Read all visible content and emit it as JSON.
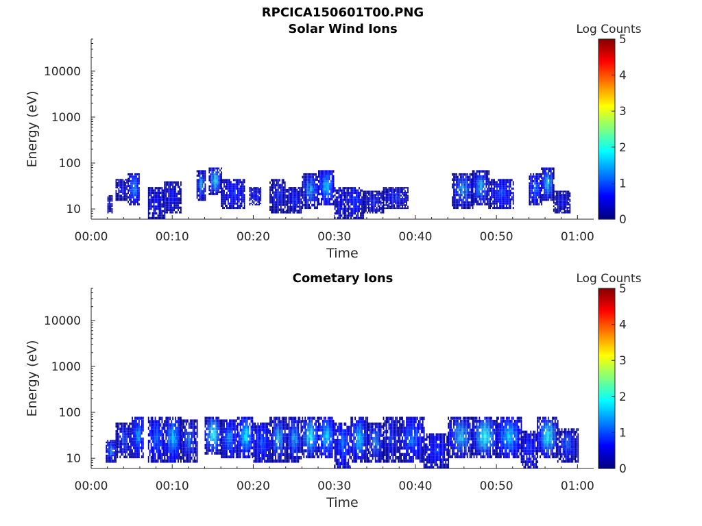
{
  "figure_title": "RPCICA150601T00.PNG",
  "chart_data": [
    {
      "type": "heatmap",
      "title": "Solar Wind Ions",
      "xlabel": "Time",
      "ylabel": "Energy (eV)",
      "x_ticks": [
        "00:00",
        "00:10",
        "00:20",
        "00:30",
        "00:40",
        "00:50",
        "01:00"
      ],
      "xlim_minutes": [
        0,
        62
      ],
      "y_ticks": [
        "10",
        "100",
        "1000",
        "10000"
      ],
      "ylim": [
        6,
        50000
      ],
      "y_scale": "log",
      "colorbar": {
        "label": "Log Counts",
        "ticks": [
          "0",
          "1",
          "2",
          "3",
          "4",
          "5"
        ],
        "range": [
          0,
          5
        ],
        "colormap": "jet"
      },
      "blobs": [
        {
          "t": [
            2,
            2.5
          ],
          "e": [
            8,
            20
          ],
          "c": 0.6
        },
        {
          "t": [
            3,
            4.5
          ],
          "e": [
            15,
            45
          ],
          "c": 0.7
        },
        {
          "t": [
            4.5,
            6
          ],
          "e": [
            12,
            60
          ],
          "c": 1.4
        },
        {
          "t": [
            7,
            9
          ],
          "e": [
            6,
            30
          ],
          "c": 0.5
        },
        {
          "t": [
            9,
            11
          ],
          "e": [
            8,
            40
          ],
          "c": 0.6
        },
        {
          "t": [
            13,
            14
          ],
          "e": [
            15,
            70
          ],
          "c": 1.5
        },
        {
          "t": [
            14.5,
            16
          ],
          "e": [
            20,
            80
          ],
          "c": 1.8
        },
        {
          "t": [
            16,
            19
          ],
          "e": [
            10,
            45
          ],
          "c": 0.8
        },
        {
          "t": [
            19.5,
            21
          ],
          "e": [
            12,
            30
          ],
          "c": 0.6
        },
        {
          "t": [
            22,
            24
          ],
          "e": [
            8,
            45
          ],
          "c": 0.8
        },
        {
          "t": [
            24,
            26
          ],
          "e": [
            8,
            30
          ],
          "c": 0.9
        },
        {
          "t": [
            26,
            28
          ],
          "e": [
            10,
            60
          ],
          "c": 1.4
        },
        {
          "t": [
            28,
            30
          ],
          "e": [
            12,
            70
          ],
          "c": 1.6
        },
        {
          "t": [
            30,
            31.5
          ],
          "e": [
            6,
            30
          ],
          "c": 0.5
        },
        {
          "t": [
            31.5,
            33.5
          ],
          "e": [
            6,
            30
          ],
          "c": 0.9
        },
        {
          "t": [
            33.5,
            36
          ],
          "e": [
            8,
            25
          ],
          "c": 0.8
        },
        {
          "t": [
            36,
            39
          ],
          "e": [
            10,
            30
          ],
          "c": 0.9
        },
        {
          "t": [
            44.5,
            47
          ],
          "e": [
            10,
            60
          ],
          "c": 1.4
        },
        {
          "t": [
            47,
            49
          ],
          "e": [
            12,
            70
          ],
          "c": 1.5
        },
        {
          "t": [
            49,
            52
          ],
          "e": [
            10,
            45
          ],
          "c": 1.0
        },
        {
          "t": [
            54,
            55.5
          ],
          "e": [
            12,
            60
          ],
          "c": 1.2
        },
        {
          "t": [
            55.5,
            57
          ],
          "e": [
            15,
            80
          ],
          "c": 1.7
        },
        {
          "t": [
            57,
            59
          ],
          "e": [
            8,
            25
          ],
          "c": 0.7
        }
      ]
    },
    {
      "type": "heatmap",
      "title": "Cometary Ions",
      "xlabel": "Time",
      "ylabel": "Energy (eV)",
      "x_ticks": [
        "00:00",
        "00:10",
        "00:20",
        "00:30",
        "00:40",
        "00:50",
        "01:00"
      ],
      "xlim_minutes": [
        0,
        62
      ],
      "y_ticks": [
        "10",
        "100",
        "1000",
        "10000"
      ],
      "ylim": [
        6,
        50000
      ],
      "y_scale": "log",
      "colorbar": {
        "label": "Log Counts",
        "ticks": [
          "0",
          "1",
          "2",
          "3",
          "4",
          "5"
        ],
        "range": [
          0,
          5
        ],
        "colormap": "jet"
      },
      "blobs": [
        {
          "t": [
            1.8,
            3
          ],
          "e": [
            8,
            25
          ],
          "c": 1.3
        },
        {
          "t": [
            3,
            5
          ],
          "e": [
            10,
            60
          ],
          "c": 1.0
        },
        {
          "t": [
            5,
            6.5
          ],
          "e": [
            10,
            80
          ],
          "c": 1.4
        },
        {
          "t": [
            7,
            9
          ],
          "e": [
            8,
            80
          ],
          "c": 1.2
        },
        {
          "t": [
            9,
            11
          ],
          "e": [
            8,
            80
          ],
          "c": 1.6
        },
        {
          "t": [
            11,
            13
          ],
          "e": [
            8,
            70
          ],
          "c": 1.2
        },
        {
          "t": [
            14,
            16
          ],
          "e": [
            12,
            80
          ],
          "c": 2.0
        },
        {
          "t": [
            16,
            18
          ],
          "e": [
            10,
            70
          ],
          "c": 1.3
        },
        {
          "t": [
            18,
            20
          ],
          "e": [
            10,
            80
          ],
          "c": 1.8
        },
        {
          "t": [
            20,
            22
          ],
          "e": [
            8,
            60
          ],
          "c": 1.1
        },
        {
          "t": [
            22,
            24
          ],
          "e": [
            8,
            80
          ],
          "c": 1.5
        },
        {
          "t": [
            24,
            26
          ],
          "e": [
            8,
            80
          ],
          "c": 1.4
        },
        {
          "t": [
            26,
            28
          ],
          "e": [
            10,
            80
          ],
          "c": 1.9
        },
        {
          "t": [
            28,
            30
          ],
          "e": [
            10,
            80
          ],
          "c": 1.7
        },
        {
          "t": [
            30,
            32
          ],
          "e": [
            6,
            60
          ],
          "c": 1.2
        },
        {
          "t": [
            32,
            34
          ],
          "e": [
            8,
            80
          ],
          "c": 1.6
        },
        {
          "t": [
            34,
            36
          ],
          "e": [
            8,
            60
          ],
          "c": 1.3
        },
        {
          "t": [
            36,
            38
          ],
          "e": [
            8,
            80
          ],
          "c": 0.9
        },
        {
          "t": [
            38,
            41
          ],
          "e": [
            8,
            80
          ],
          "c": 1.2
        },
        {
          "t": [
            41,
            44
          ],
          "e": [
            6,
            35
          ],
          "c": 0.8
        },
        {
          "t": [
            44,
            47
          ],
          "e": [
            10,
            80
          ],
          "c": 1.6
        },
        {
          "t": [
            47,
            50
          ],
          "e": [
            10,
            80
          ],
          "c": 2.0
        },
        {
          "t": [
            50,
            53
          ],
          "e": [
            10,
            80
          ],
          "c": 1.6
        },
        {
          "t": [
            53,
            55
          ],
          "e": [
            6,
            40
          ],
          "c": 0.9
        },
        {
          "t": [
            55,
            57.5
          ],
          "e": [
            10,
            80
          ],
          "c": 1.9
        },
        {
          "t": [
            57.5,
            60
          ],
          "e": [
            8,
            45
          ],
          "c": 1.1
        }
      ]
    }
  ]
}
